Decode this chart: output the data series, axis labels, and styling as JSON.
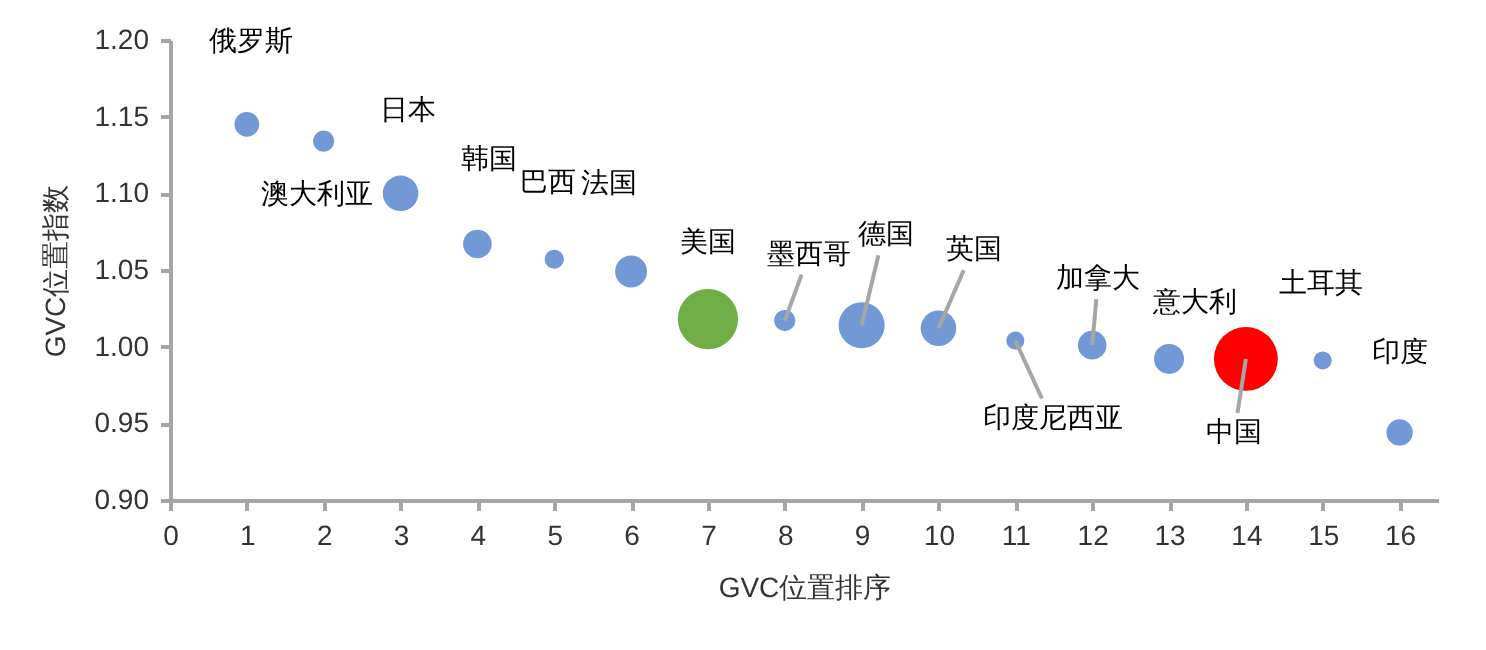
{
  "chart_data": {
    "type": "bubble",
    "xlabel": "GVC位置排序",
    "ylabel": "GVC位置指数",
    "x": [
      1,
      2,
      3,
      4,
      5,
      6,
      7,
      8,
      9,
      10,
      11,
      12,
      13,
      14,
      15,
      16
    ],
    "values": [
      1.145,
      1.134,
      1.1,
      1.067,
      1.057,
      1.049,
      1.018,
      1.017,
      1.014,
      1.012,
      1.004,
      1.001,
      0.992,
      0.992,
      0.991,
      0.944
    ],
    "sizes": [
      0.15,
      0.11,
      0.31,
      0.2,
      0.09,
      0.25,
      0.89,
      0.11,
      0.52,
      0.31,
      0.08,
      0.2,
      0.22,
      1,
      0.08,
      0.17
    ],
    "colors": [
      "#7298d6",
      "#7298d6",
      "#7298d6",
      "#7298d6",
      "#7298d6",
      "#7298d6",
      "#70ad47",
      "#7298d6",
      "#7298d6",
      "#7298d6",
      "#7298d6",
      "#7298d6",
      "#7298d6",
      "#ff0000",
      "#7298d6",
      "#7298d6"
    ],
    "xlim": [
      0,
      16.5
    ],
    "xticks": [
      0,
      1,
      2,
      3,
      4,
      5,
      6,
      7,
      8,
      9,
      10,
      11,
      12,
      13,
      14,
      15,
      16
    ],
    "ylim": [
      0.9,
      1.2
    ],
    "yticks": [
      {
        "value": 0.9,
        "label": "0.90"
      },
      {
        "value": 0.95,
        "label": "0.95"
      },
      {
        "value": 1.0,
        "label": "1.00"
      },
      {
        "value": 1.05,
        "label": "1.05"
      },
      {
        "value": 1.1,
        "label": "1.10"
      },
      {
        "value": 1.15,
        "label": "1.15"
      },
      {
        "value": 1.2,
        "label": "1.20"
      }
    ],
    "grid": false,
    "legend": false,
    "annotations": [
      {
        "text": "俄罗斯",
        "x": 1,
        "y": 1.145
      },
      {
        "text": "日本",
        "x": 2,
        "y": 1.134
      },
      {
        "text": "澳大利亚",
        "x": 3,
        "y": 1.1
      },
      {
        "text": "韩国",
        "x": 4,
        "y": 1.067
      },
      {
        "text": "巴西",
        "x": 5,
        "y": 1.057
      },
      {
        "text": "法国",
        "x": 6,
        "y": 1.049
      },
      {
        "text": "美国",
        "x": 7,
        "y": 1.018
      },
      {
        "text": "墨西哥",
        "x": 8,
        "y": 1.017
      },
      {
        "text": "德国",
        "x": 9,
        "y": 1.014
      },
      {
        "text": "英国",
        "x": 10,
        "y": 1.012
      },
      {
        "text": "印度尼西亚",
        "x": 11,
        "y": 1.004
      },
      {
        "text": "加拿大",
        "x": 12,
        "y": 1.001
      },
      {
        "text": "意大利",
        "x": 13,
        "y": 0.992
      },
      {
        "text": "中国",
        "x": 14,
        "y": 0.992
      },
      {
        "text": "土耳其",
        "x": 15,
        "y": 0.991
      },
      {
        "text": "印度",
        "x": 16,
        "y": 0.944
      }
    ]
  }
}
